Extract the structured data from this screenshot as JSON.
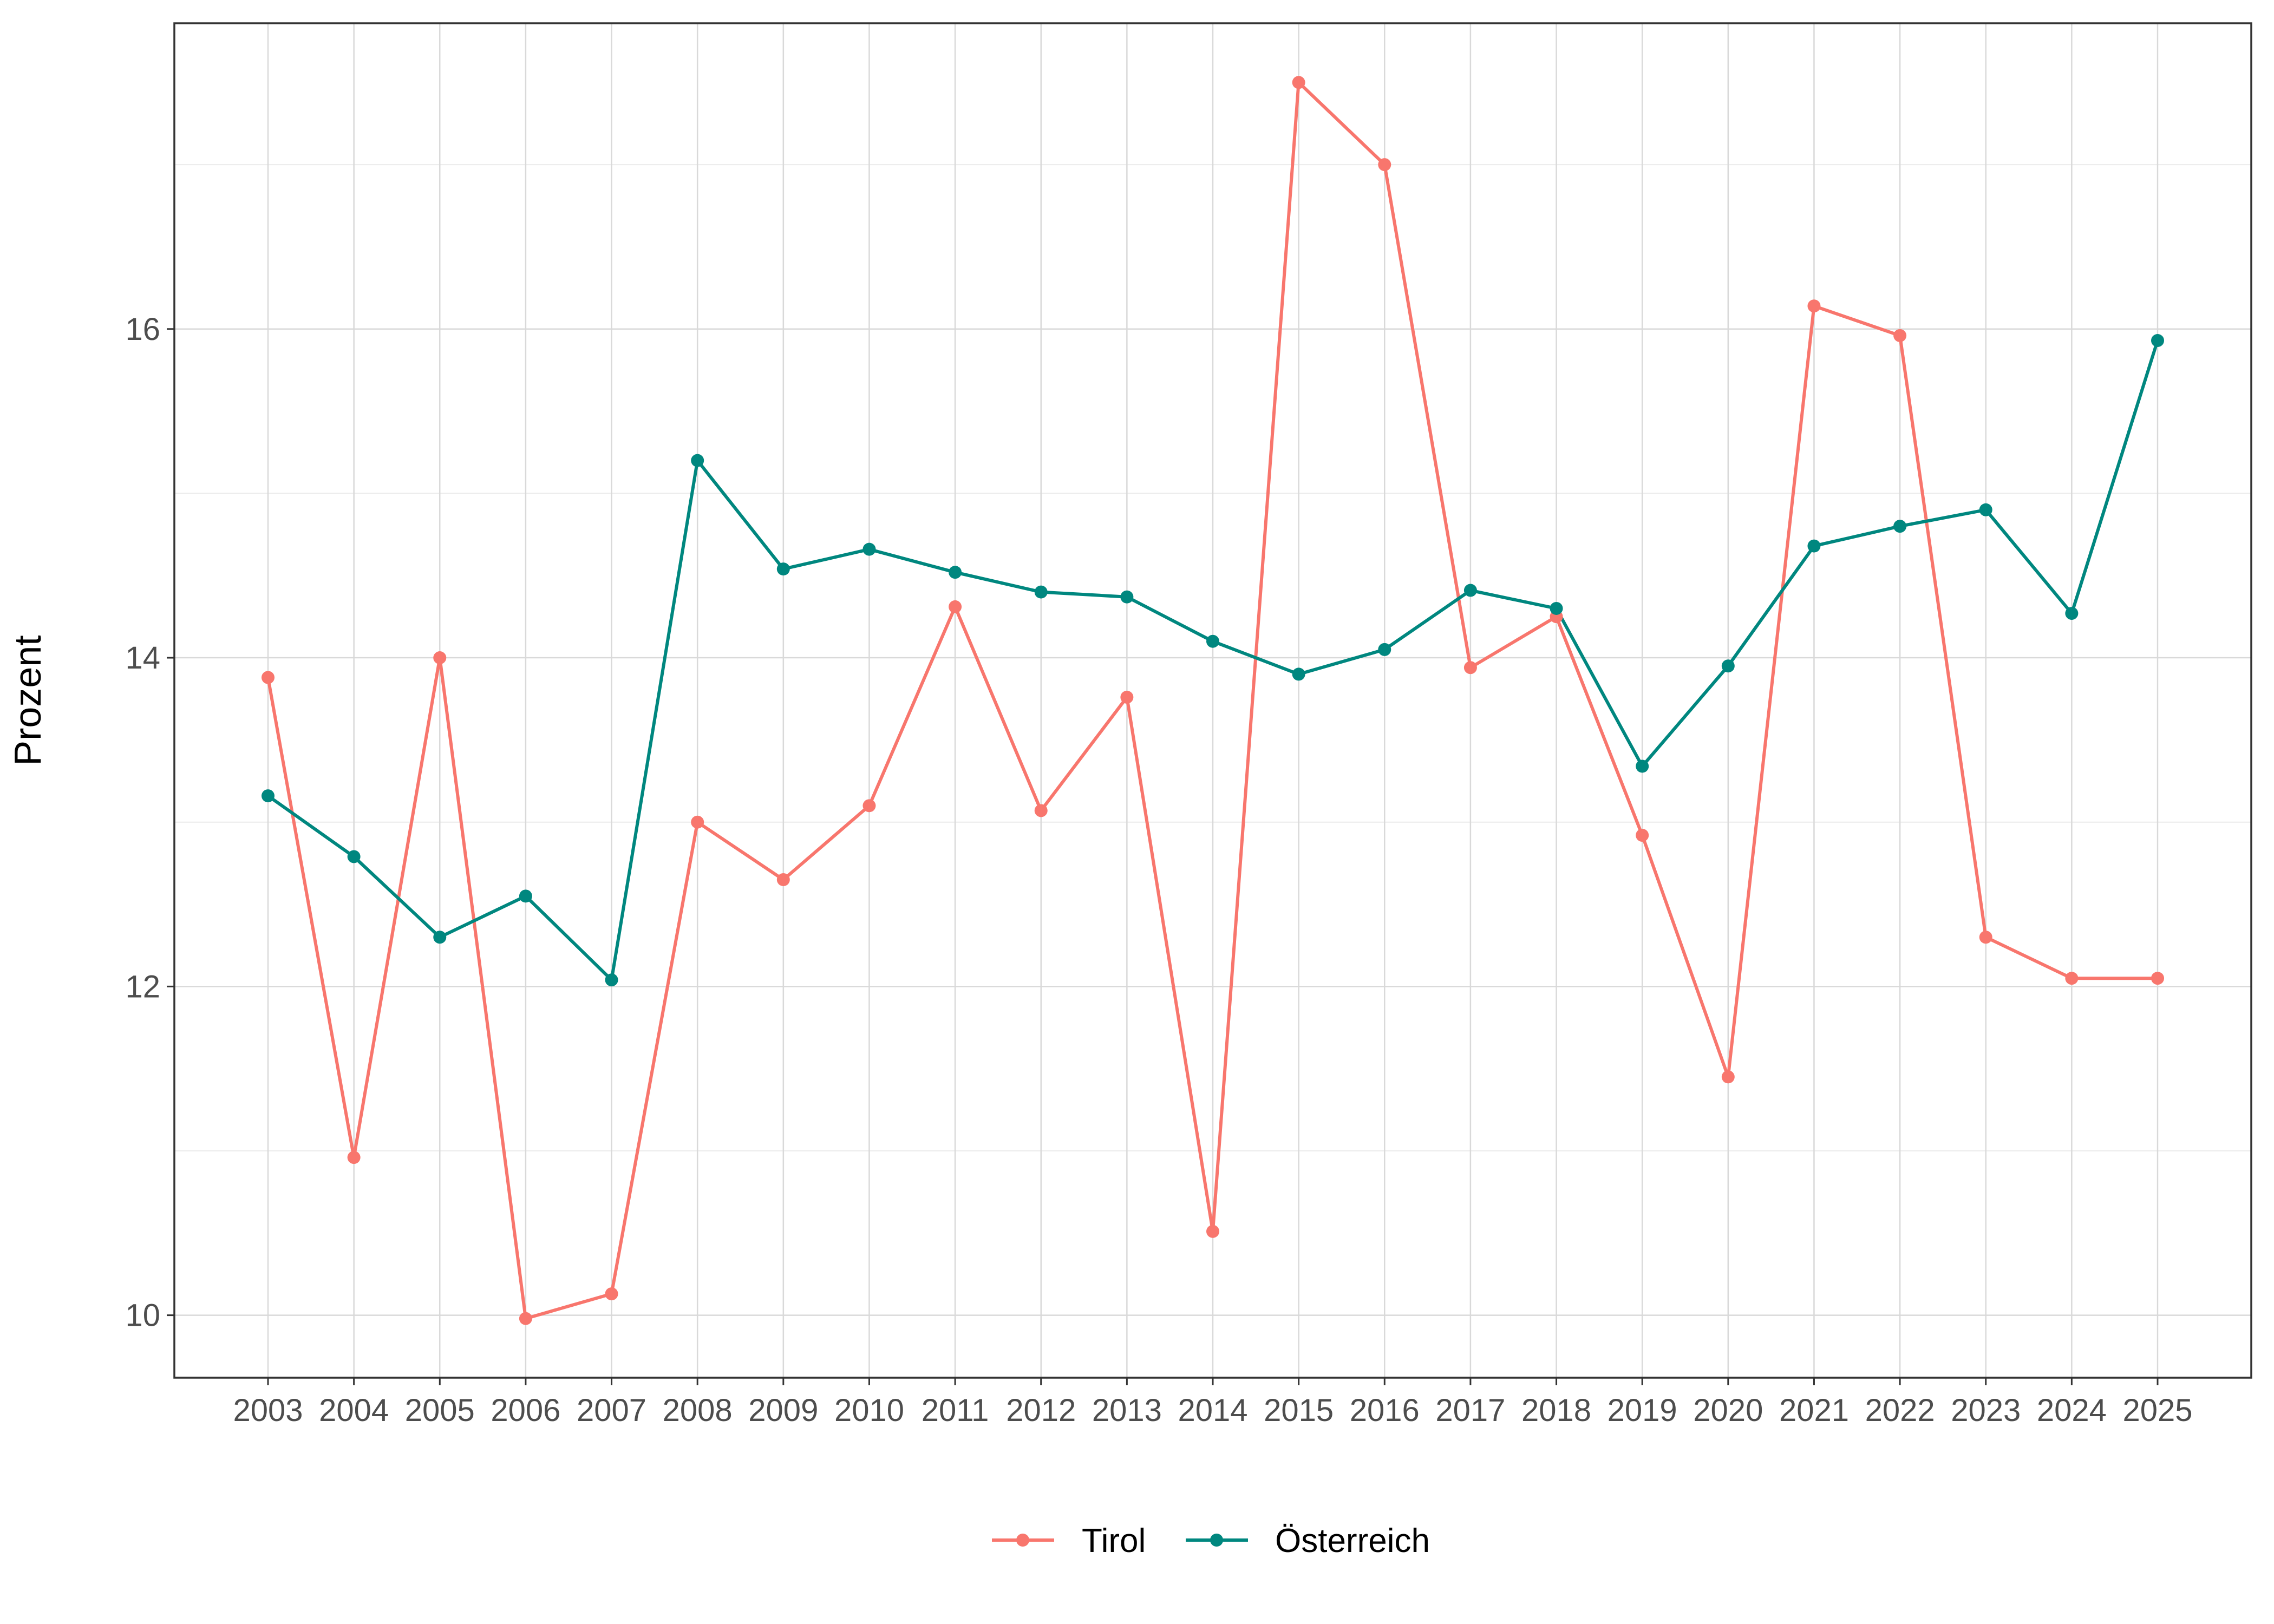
{
  "chart_data": {
    "type": "line",
    "title": "",
    "xlabel": "",
    "ylabel": "Prozent",
    "x": [
      "2003",
      "2004",
      "2005",
      "2006",
      "2007",
      "2008",
      "2009",
      "2010",
      "2011",
      "2012",
      "2013",
      "2014",
      "2015",
      "2016",
      "2017",
      "2018",
      "2019",
      "2020",
      "2021",
      "2022",
      "2023",
      "2024",
      "2025"
    ],
    "ylim": [
      9.62,
      17.86
    ],
    "y_ticks": [
      10,
      12,
      14,
      16
    ],
    "grid": true,
    "legend_position": "bottom",
    "series": [
      {
        "name": "Tirol",
        "color": "#F8766D",
        "values": [
          13.88,
          10.96,
          14.0,
          9.98,
          10.13,
          13.0,
          12.65,
          13.1,
          14.31,
          13.07,
          13.76,
          10.51,
          17.5,
          17.0,
          13.94,
          14.25,
          12.92,
          11.45,
          16.14,
          15.96,
          12.3,
          12.05,
          12.05
        ]
      },
      {
        "name": "Österreich",
        "color": "#00877F",
        "values": [
          13.16,
          12.79,
          12.3,
          12.55,
          12.04,
          15.2,
          14.54,
          14.66,
          14.52,
          14.4,
          14.37,
          14.1,
          13.9,
          14.05,
          14.41,
          14.3,
          13.34,
          13.95,
          14.68,
          14.8,
          14.9,
          14.27,
          15.93
        ]
      }
    ]
  }
}
